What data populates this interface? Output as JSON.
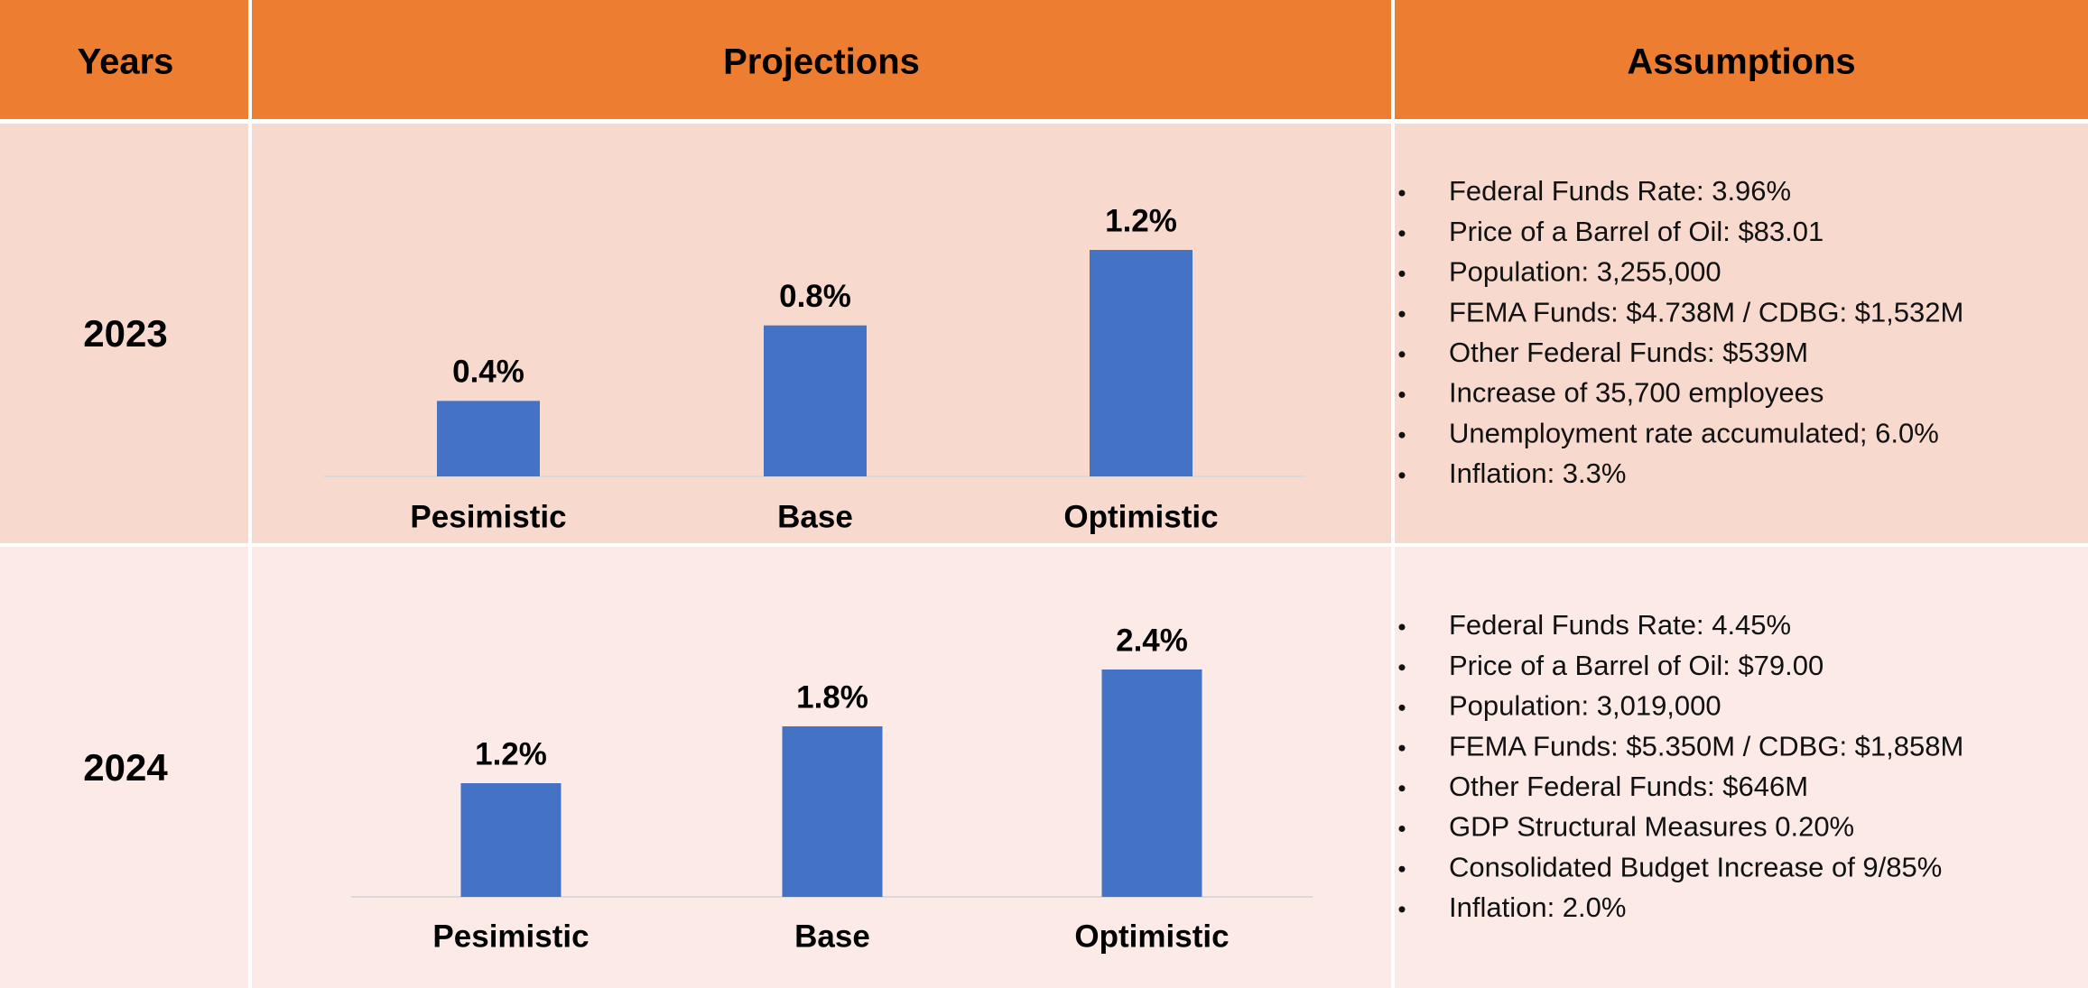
{
  "table": {
    "header": [
      "Years",
      "Projections",
      "Assumptions"
    ],
    "rows": [
      {
        "year": "2023",
        "assumptions": [
          "Federal Funds Rate: 3.96%",
          "Price of a Barrel of Oil: $83.01",
          "Population: 3,255,000",
          "FEMA Funds: $4.738M / CDBG: $1,532M",
          "Other Federal Funds: $539M",
          "Increase of 35,700 employees",
          "Unemployment rate accumulated; 6.0%",
          "Inflation: 3.3%"
        ]
      },
      {
        "year": "2024",
        "assumptions": [
          "Federal Funds Rate: 4.45%",
          "Price of a Barrel of Oil: $79.00",
          "Population: 3,019,000",
          "FEMA Funds: $5.350M / CDBG: $1,858M",
          "Other Federal Funds: $646M",
          "GDP Structural Measures 0.20%",
          "Consolidated Budget Increase of 9/85%",
          "Inflation: 2.0%"
        ]
      }
    ]
  },
  "chart_data": [
    {
      "type": "bar",
      "categories": [
        "Pesimistic",
        "Base",
        "Optimistic"
      ],
      "values": [
        0.4,
        0.8,
        1.2
      ],
      "value_labels": [
        "0.4%",
        "0.8%",
        "1.2%"
      ],
      "color": "#4472c4",
      "ylim": [
        0,
        1.2
      ]
    },
    {
      "type": "bar",
      "categories": [
        "Pesimistic",
        "Base",
        "Optimistic"
      ],
      "values": [
        1.2,
        1.8,
        2.4
      ],
      "value_labels": [
        "1.2%",
        "1.8%",
        "2.4%"
      ],
      "color": "#4472c4",
      "ylim": [
        0,
        2.4
      ]
    }
  ]
}
